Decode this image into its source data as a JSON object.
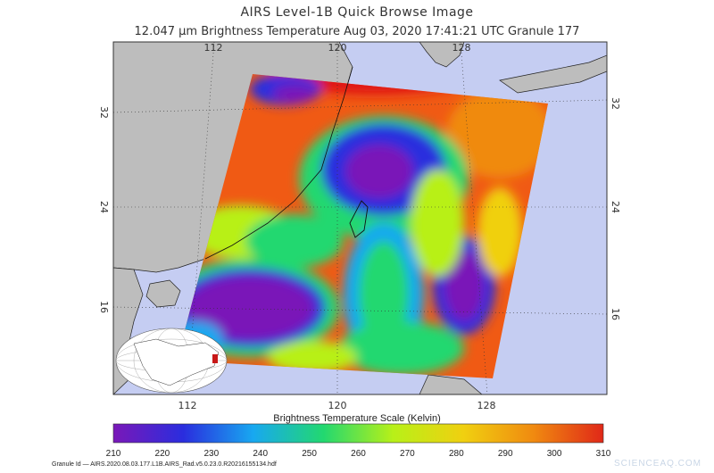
{
  "header": {
    "title": "AIRS Level-1B Quick Browse Image",
    "subtitle": "12.047 μm Brightness Temperature    Aug 03, 2020 17:41:21 UTC   Granule 177"
  },
  "map": {
    "lon_ticks_top": [
      "112",
      "120",
      "128"
    ],
    "lon_ticks_bottom": [
      "112",
      "120",
      "128"
    ],
    "lat_ticks_left": [
      "32",
      "24",
      "16"
    ],
    "lat_ticks_right": [
      "32",
      "24",
      "16"
    ],
    "ocean_color": "#c5cdf2",
    "land_color": "#bdbdbd"
  },
  "colorbar": {
    "title": "Brightness Temperature Scale (Kelvin)",
    "ticks": [
      "210",
      "220",
      "230",
      "240",
      "250",
      "260",
      "270",
      "280",
      "290",
      "300",
      "310"
    ],
    "min": 210,
    "max": 310,
    "colors": [
      "#7a18b8",
      "#2a2dde",
      "#18a8f0",
      "#22d870",
      "#b8f018",
      "#f0d010",
      "#f08a10",
      "#e02818"
    ]
  },
  "footer": {
    "granule_id": "Granule Id — AIRS.2020.08.03.177.L1B.AIRS_Rad.v5.0.23.0.R20216155134.hdf",
    "watermark": "SCIENCEAQ.COM"
  }
}
